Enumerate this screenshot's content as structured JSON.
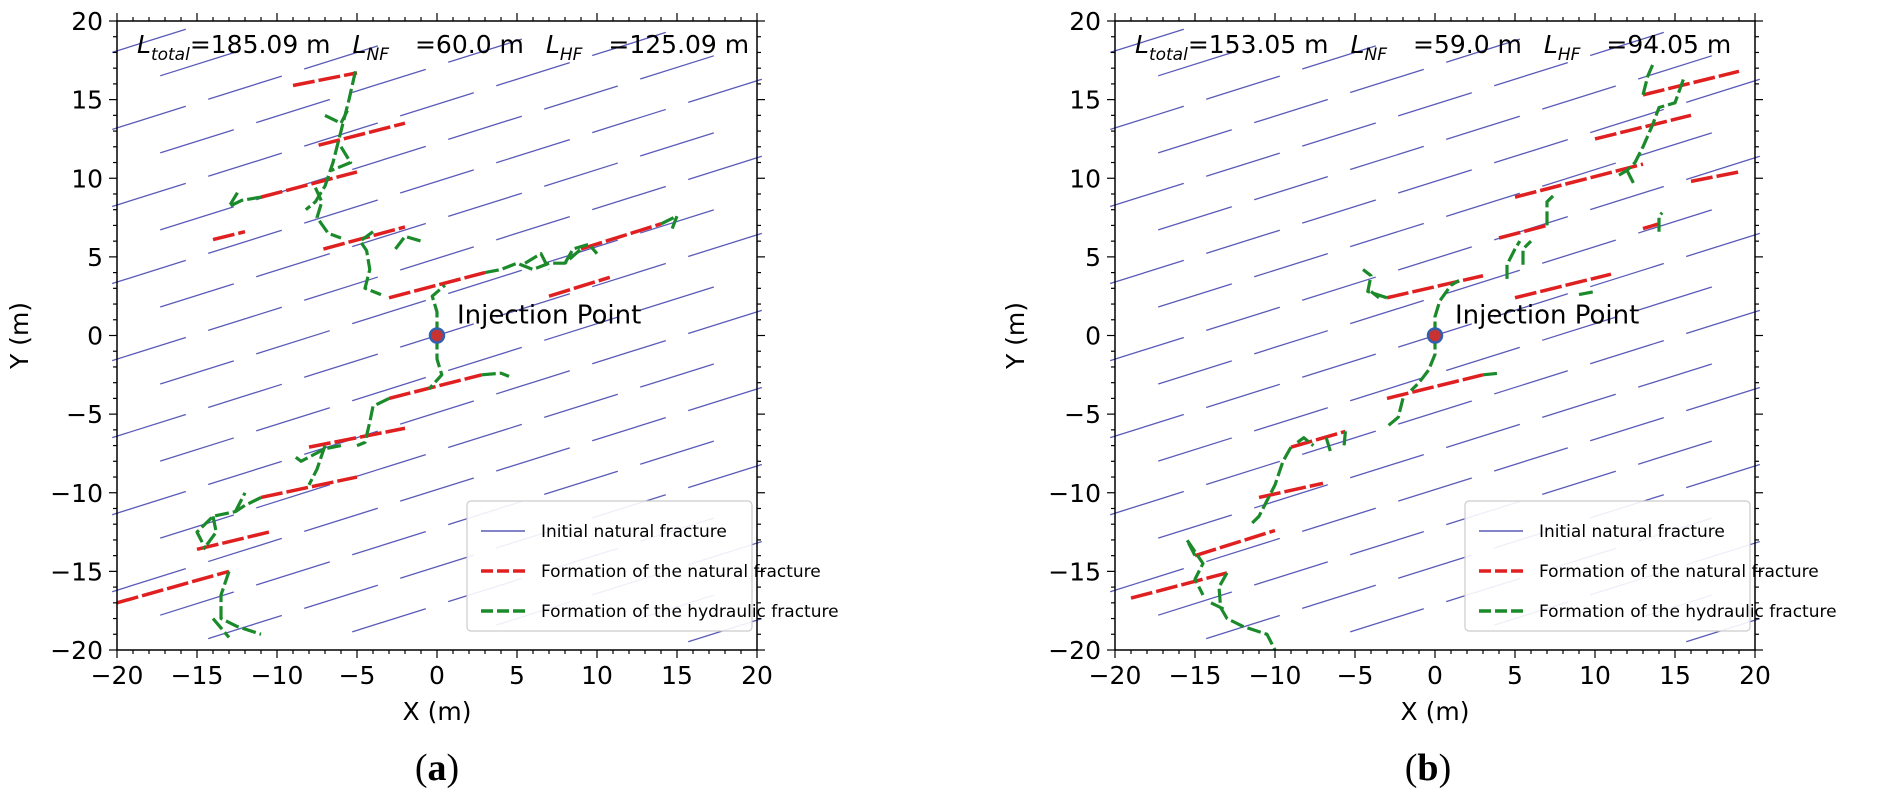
{
  "chart_data": [
    {
      "type": "line",
      "panel_label": {
        "open": "(",
        "letter": "a",
        "close": ")"
      },
      "xlabel": "X (m)",
      "ylabel": "Y (m)",
      "xlim": [
        -20,
        20
      ],
      "ylim": [
        -20,
        20
      ],
      "xticks": [
        -20,
        -15,
        -10,
        -5,
        0,
        5,
        10,
        15,
        20
      ],
      "yticks": [
        -20,
        -15,
        -10,
        -5,
        0,
        5,
        10,
        15,
        20
      ],
      "xtick_labels": [
        "−20",
        "−15",
        "−10",
        "−5",
        "0",
        "5",
        "10",
        "15",
        "20"
      ],
      "ytick_labels": [
        "−20",
        "−15",
        "−10",
        "−5",
        "0",
        "5",
        "10",
        "15",
        "20"
      ],
      "annotation": {
        "L": "L",
        "total_sub": "total",
        "total_val": "=185.09 m",
        "nf_sub": "NF",
        "nf_val": "=60.0 m",
        "hf_sub": "HF",
        "hf_val": "=125.09 m"
      },
      "injection_point": {
        "label": "Injection Point",
        "x": 0,
        "y": 0
      },
      "legend": {
        "position": "lower-right",
        "entries": [
          "Initial natural fracture",
          "Formation of the natural fracture",
          "Formation of the hydraulic fracture"
        ]
      },
      "colors": {
        "initial": "#5a5ab8",
        "natural": "#e02020",
        "hydraulic": "#1a8a2a",
        "injection_fill": "#c83232",
        "injection_edge": "#3060b0"
      },
      "natural_segments": [
        [
          -9,
          15.9,
          -5,
          16.7
        ],
        [
          -7.4,
          12.1,
          -2,
          13.5
        ],
        [
          -11,
          8.8,
          -5,
          10.4
        ],
        [
          -14,
          6.1,
          -12,
          6.6
        ],
        [
          -7.1,
          5.5,
          -2,
          6.9
        ],
        [
          -3,
          2.4,
          3,
          4.0
        ],
        [
          7,
          2.5,
          10.8,
          3.7
        ],
        [
          9,
          5.5,
          14,
          7.1
        ],
        [
          -3,
          -4,
          2.8,
          -2.5
        ],
        [
          -8,
          -7.1,
          -2,
          -5.9
        ],
        [
          -11,
          -10.3,
          -5,
          -9
        ],
        [
          -15,
          -13.6,
          -10.5,
          -12.5
        ],
        [
          -20,
          -17,
          -13,
          -15
        ]
      ],
      "hydraulic_paths": [
        [
          [
            -5.1,
            16.8
          ],
          [
            -5.5,
            15
          ],
          [
            -6,
            13
          ],
          [
            -6.5,
            11
          ],
          [
            -7,
            9.5
          ],
          [
            -7.6,
            8.5
          ],
          [
            -8.2,
            8
          ]
        ],
        [
          [
            -7,
            14
          ],
          [
            -6,
            13.5
          ],
          [
            -5.5,
            14.5
          ]
        ],
        [
          [
            -6,
            12
          ],
          [
            -5.4,
            11
          ],
          [
            -6.6,
            10.5
          ]
        ],
        [
          [
            -11,
            8.8
          ],
          [
            -12.2,
            8.6
          ],
          [
            -13,
            8.2
          ],
          [
            -12.4,
            9.2
          ]
        ],
        [
          [
            -7.6,
            9.4
          ],
          [
            -7.2,
            8.5
          ],
          [
            -7.5,
            7.5
          ],
          [
            -6.8,
            6.5
          ],
          [
            -6,
            6.2
          ]
        ],
        [
          [
            -4,
            6.6
          ],
          [
            -4.8,
            6
          ],
          [
            -4.4,
            5.4
          ],
          [
            -4.2,
            4.2
          ],
          [
            -4.5,
            3
          ],
          [
            -3.5,
            2.6
          ]
        ],
        [
          [
            -2.6,
            5.5
          ],
          [
            -2,
            6.3
          ],
          [
            -1,
            6
          ]
        ],
        [
          [
            0,
            0
          ],
          [
            0,
            1.5
          ],
          [
            -0.3,
            2.5
          ],
          [
            0.5,
            3.2
          ]
        ],
        [
          [
            3,
            4.0
          ],
          [
            4,
            4.2
          ],
          [
            5,
            4.6
          ],
          [
            6,
            4.2
          ],
          [
            7,
            4.6
          ],
          [
            8,
            4.6
          ],
          [
            9,
            5.5
          ]
        ],
        [
          [
            5.5,
            4.6
          ],
          [
            6.5,
            5.2
          ],
          [
            7,
            4.2
          ]
        ],
        [
          [
            8,
            4.6
          ],
          [
            8.5,
            5.5
          ],
          [
            9.5,
            5.8
          ],
          [
            10,
            5.2
          ]
        ],
        [
          [
            14,
            7.1
          ],
          [
            15,
            7.6
          ],
          [
            14.7,
            6.8
          ]
        ],
        [
          [
            0,
            0
          ],
          [
            0,
            -1.5
          ],
          [
            0.3,
            -2.5
          ],
          [
            -0.5,
            -3.4
          ]
        ],
        [
          [
            2.8,
            -2.5
          ],
          [
            4,
            -2.4
          ],
          [
            4.5,
            -2.6
          ]
        ],
        [
          [
            -3,
            -4
          ],
          [
            -4,
            -4.5
          ],
          [
            -4.2,
            -5.5
          ],
          [
            -4.5,
            -6.8
          ],
          [
            -5,
            -7
          ]
        ],
        [
          [
            -6,
            -7
          ],
          [
            -7,
            -7.2
          ],
          [
            -8.5,
            -8
          ],
          [
            -9,
            -7.6
          ]
        ],
        [
          [
            -7,
            -7
          ],
          [
            -7.5,
            -8.5
          ],
          [
            -8,
            -9.5
          ]
        ],
        [
          [
            -11,
            -10.3
          ],
          [
            -12,
            -10.8
          ],
          [
            -12.6,
            -11.2
          ],
          [
            -14,
            -11.5
          ],
          [
            -15,
            -12.5
          ],
          [
            -14.5,
            -13.5
          ]
        ],
        [
          [
            -12.6,
            -11.2
          ],
          [
            -12,
            -10
          ]
        ],
        [
          [
            -14,
            -11.5
          ],
          [
            -13.8,
            -12.5
          ],
          [
            -14.6,
            -13.6
          ]
        ],
        [
          [
            -13,
            -15
          ],
          [
            -13.5,
            -16.5
          ],
          [
            -13.5,
            -18
          ],
          [
            -12.5,
            -18.5
          ],
          [
            -11,
            -19
          ]
        ],
        [
          [
            -14,
            -18
          ],
          [
            -13,
            -19.2
          ]
        ]
      ]
    },
    {
      "type": "line",
      "panel_label": {
        "open": "(",
        "letter": "b",
        "close": ")"
      },
      "xlabel": "X (m)",
      "ylabel": "Y (m)",
      "xlim": [
        -20,
        20
      ],
      "ylim": [
        -20,
        20
      ],
      "xticks": [
        -20,
        -15,
        -10,
        -5,
        0,
        5,
        10,
        15,
        20
      ],
      "yticks": [
        -20,
        -15,
        -10,
        -5,
        0,
        5,
        10,
        15,
        20
      ],
      "xtick_labels": [
        "−20",
        "−15",
        "−10",
        "−5",
        "0",
        "5",
        "10",
        "15",
        "20"
      ],
      "ytick_labels": [
        "−20",
        "−15",
        "−10",
        "−5",
        "0",
        "5",
        "10",
        "15",
        "20"
      ],
      "annotation": {
        "L": "L",
        "total_sub": "total",
        "total_val": "=153.05 m",
        "nf_sub": "NF",
        "nf_val": "=59.0 m",
        "hf_sub": "HF",
        "hf_val": "=94.05 m"
      },
      "injection_point": {
        "label": "Injection Point",
        "x": 0,
        "y": 0
      },
      "legend": {
        "position": "lower-right",
        "entries": [
          "Initial natural fracture",
          "Formation of the natural fracture",
          "Formation of the hydraulic fracture"
        ]
      },
      "colors": {
        "initial": "#5a5ab8",
        "natural": "#e02020",
        "hydraulic": "#1a8a2a",
        "injection_fill": "#c83232",
        "injection_edge": "#3060b0"
      },
      "natural_segments": [
        [
          -19,
          -16.7,
          -13,
          -15.1
        ],
        [
          -15,
          -14,
          -10,
          -12.4
        ],
        [
          -11,
          -10.3,
          -7,
          -9.4
        ],
        [
          -9,
          -7.1,
          -5.6,
          -6.1
        ],
        [
          -3,
          -4,
          3,
          -2.5
        ],
        [
          -3,
          2.4,
          3,
          3.8
        ],
        [
          5,
          2.4,
          11,
          3.9
        ],
        [
          4,
          6.2,
          7,
          7.0
        ],
        [
          5,
          8.8,
          13,
          10.9
        ],
        [
          16,
          9.8,
          19,
          10.4
        ],
        [
          13,
          6.8,
          14,
          7.1
        ],
        [
          10,
          12.5,
          16,
          14.0
        ],
        [
          13,
          15.3,
          19,
          16.8
        ]
      ],
      "hydraulic_paths": [
        [
          [
            0,
            0
          ],
          [
            0,
            -1.2
          ],
          [
            -0.4,
            -2.2
          ],
          [
            -1,
            -3
          ],
          [
            -1.5,
            -3.5
          ]
        ],
        [
          [
            3,
            -2.5
          ],
          [
            4,
            -2.4
          ]
        ],
        [
          [
            -2,
            -4
          ],
          [
            -2.3,
            -5.2
          ],
          [
            -3,
            -5.8
          ]
        ],
        [
          [
            -5.6,
            -6.1
          ],
          [
            -5.7,
            -7.2
          ]
        ],
        [
          [
            -6.8,
            -6.5
          ],
          [
            -6.5,
            -7.5
          ]
        ],
        [
          [
            -9,
            -7.1
          ],
          [
            -9.5,
            -8
          ],
          [
            -10,
            -9.5
          ],
          [
            -10.5,
            -10.5
          ],
          [
            -11,
            -11.5
          ],
          [
            -11.5,
            -12
          ]
        ],
        [
          [
            -8.6,
            -6.8
          ],
          [
            -8.2,
            -6.5
          ],
          [
            -7.6,
            -7
          ]
        ],
        [
          [
            -15,
            -14
          ],
          [
            -15.5,
            -13
          ],
          [
            -14.5,
            -14.5
          ],
          [
            -15,
            -15.5
          ],
          [
            -14.5,
            -16.5
          ]
        ],
        [
          [
            -13,
            -15.1
          ],
          [
            -13.5,
            -16
          ],
          [
            -13.4,
            -17.3
          ],
          [
            -13,
            -18
          ],
          [
            -12,
            -18.5
          ],
          [
            -10.5,
            -19
          ],
          [
            -10,
            -20
          ]
        ],
        [
          [
            -14,
            -17
          ],
          [
            -13,
            -17.5
          ]
        ],
        [
          [
            0,
            0
          ],
          [
            0,
            1.2
          ],
          [
            0.3,
            2.2
          ],
          [
            1,
            3.2
          ],
          [
            1.5,
            3.5
          ]
        ],
        [
          [
            -3,
            2.4
          ],
          [
            -4.2,
            2.8
          ],
          [
            -4,
            3.8
          ],
          [
            -4.5,
            4.2
          ]
        ],
        [
          [
            -4,
            2.8
          ],
          [
            -3.5,
            2.4
          ]
        ],
        [
          [
            9,
            2.6
          ],
          [
            10,
            2.8
          ]
        ],
        [
          [
            4.5,
            3.6
          ],
          [
            4.5,
            4.5
          ],
          [
            5,
            5.5
          ],
          [
            5.3,
            6
          ]
        ],
        [
          [
            5.5,
            4.5
          ],
          [
            5.5,
            5.5
          ],
          [
            6,
            6
          ]
        ],
        [
          [
            7,
            7.0
          ],
          [
            7,
            8.5
          ],
          [
            7.5,
            9
          ]
        ],
        [
          [
            11.5,
            10.2
          ],
          [
            12,
            10.5
          ],
          [
            12.5,
            11
          ],
          [
            13,
            12
          ],
          [
            13.6,
            13.4
          ],
          [
            14,
            14.5
          ],
          [
            15,
            14.8
          ],
          [
            15.6,
            16.5
          ]
        ],
        [
          [
            12,
            10.5
          ],
          [
            12.5,
            9.5
          ]
        ],
        [
          [
            13,
            15.3
          ],
          [
            13.3,
            16.5
          ],
          [
            13.6,
            17.2
          ]
        ],
        [
          [
            14,
            6.6
          ],
          [
            14,
            7.6
          ],
          [
            14.2,
            7.8
          ]
        ]
      ]
    }
  ]
}
